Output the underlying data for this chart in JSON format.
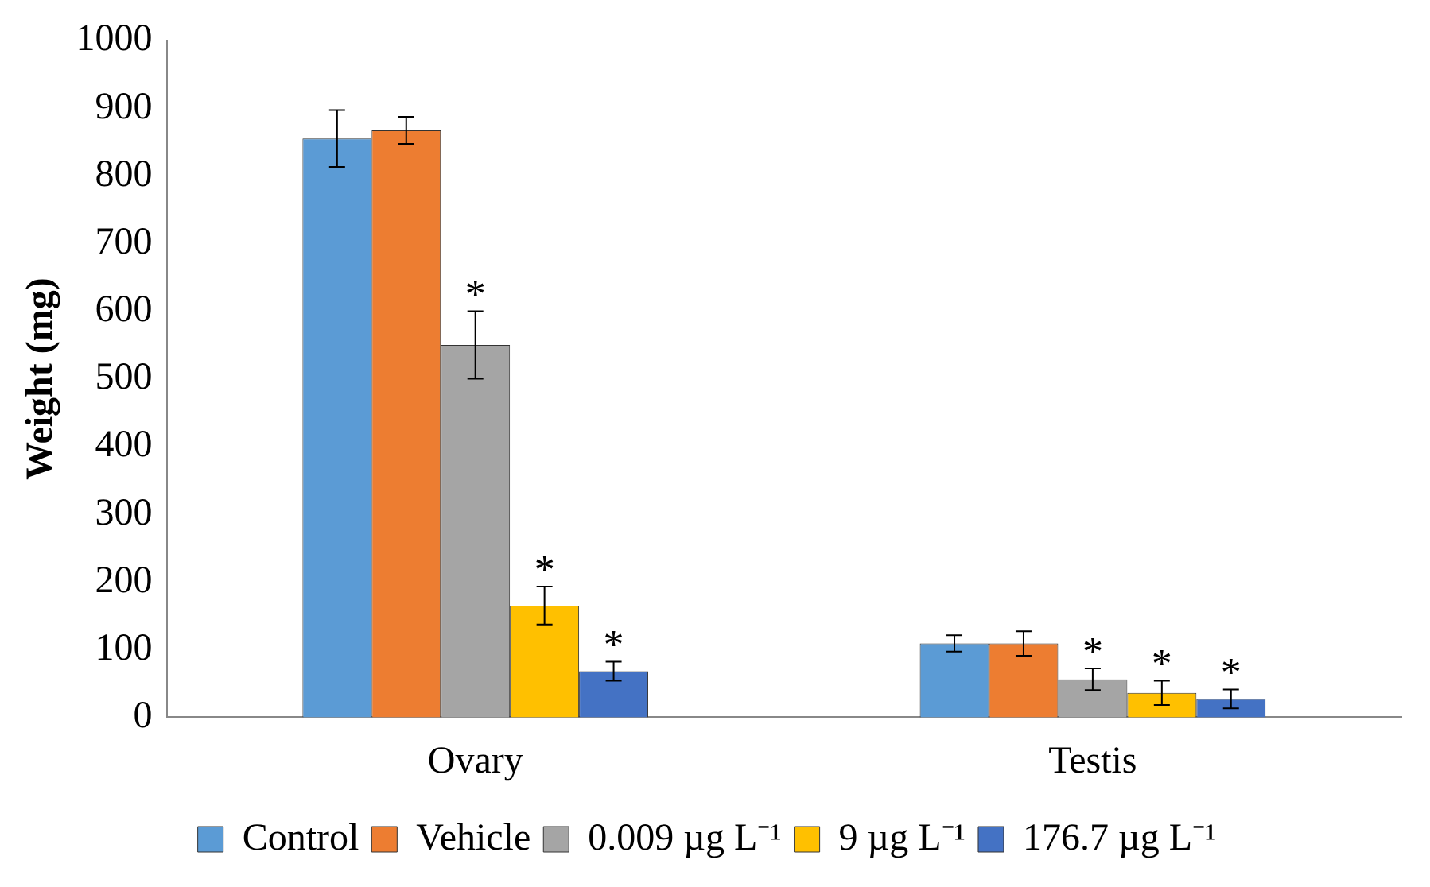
{
  "chart_data": {
    "type": "bar",
    "ylabel": "Weight (mg)",
    "categories": [
      "Ovary",
      "Testis"
    ],
    "series": [
      {
        "name": "Control",
        "color": "#5b9bd5",
        "values": [
          855,
          109
        ],
        "errors": [
          42,
          12
        ]
      },
      {
        "name": "Vehicle",
        "color": "#ed7d31",
        "values": [
          867,
          109
        ],
        "errors": [
          20,
          18
        ]
      },
      {
        "name": "0.009 µg L⁻¹",
        "color": "#a5a5a5",
        "values": [
          550,
          56
        ],
        "errors": [
          50,
          16
        ],
        "value_labels": [
          "*",
          "*"
        ]
      },
      {
        "name": "9 µg L⁻¹",
        "color": "#ffc000",
        "values": [
          165,
          36
        ],
        "errors": [
          28,
          18
        ],
        "value_labels": [
          "*",
          "*"
        ]
      },
      {
        "name": "176.7 µg L⁻¹",
        "color": "#4472c4",
        "values": [
          68,
          27
        ],
        "errors": [
          14,
          14
        ],
        "value_labels": [
          "*",
          "*"
        ]
      }
    ],
    "ylim": [
      0,
      1000
    ],
    "yticks": [
      0,
      100,
      200,
      300,
      400,
      500,
      600,
      700,
      800,
      900,
      1000
    ],
    "grid": false,
    "legend": "bottom"
  }
}
